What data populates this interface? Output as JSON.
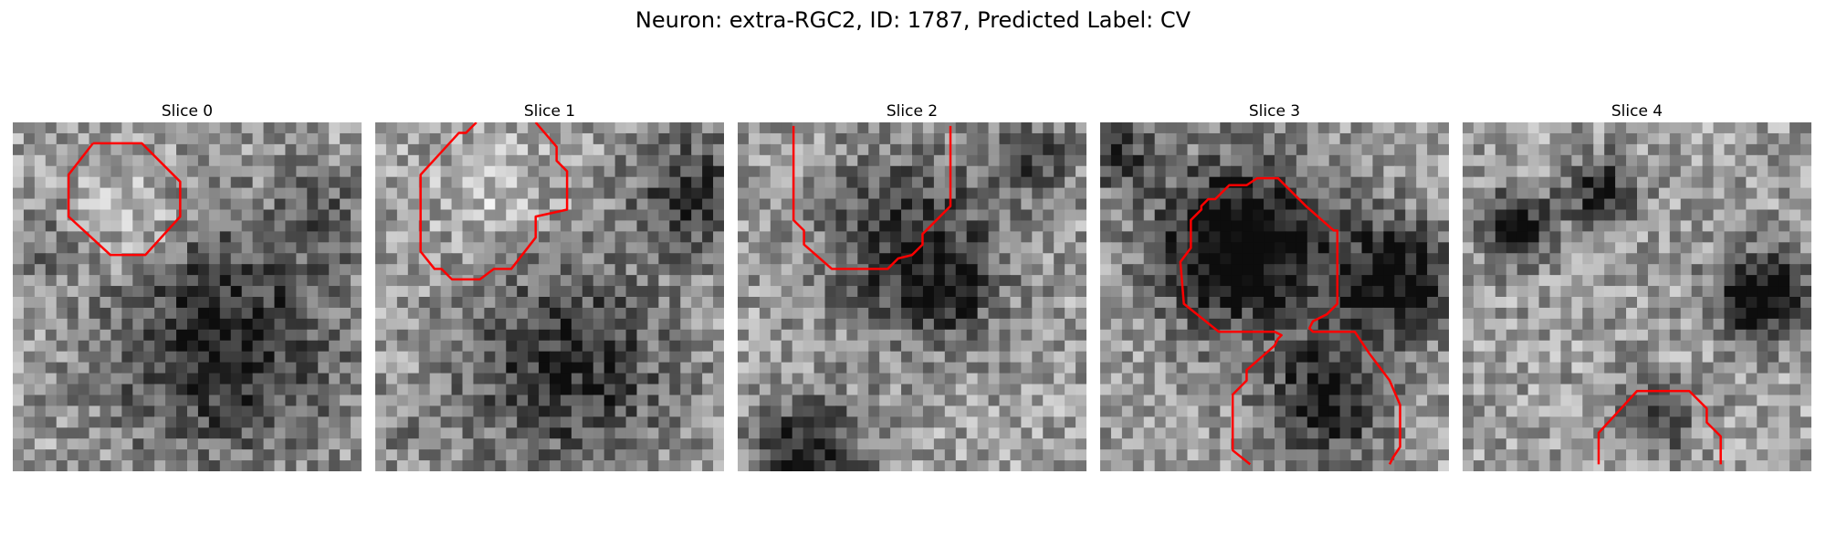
{
  "title": "Neuron: extra-RGC2, ID: 1787, Predicted Label: CV",
  "contour_color": "#ff0000",
  "panels": [
    {
      "label": "Slice 0",
      "seed": 11,
      "blobs": [
        [
          0.6,
          0.62,
          0.4,
          0.5
        ],
        [
          0.35,
          0.3,
          0.18,
          -0.2
        ],
        [
          0.1,
          0.35,
          0.12,
          0.15
        ],
        [
          0.9,
          0.25,
          0.15,
          0.2
        ]
      ],
      "contour": [
        [
          0.23,
          0.06
        ],
        [
          0.37,
          0.06
        ],
        [
          0.48,
          0.17
        ],
        [
          0.48,
          0.27
        ],
        [
          0.38,
          0.38
        ],
        [
          0.28,
          0.38
        ],
        [
          0.16,
          0.27
        ],
        [
          0.16,
          0.15
        ],
        [
          0.23,
          0.06
        ]
      ]
    },
    {
      "label": "Slice 1",
      "seed": 23,
      "blobs": [
        [
          0.55,
          0.7,
          0.35,
          0.45
        ],
        [
          0.35,
          0.22,
          0.18,
          -0.15
        ],
        [
          0.9,
          0.2,
          0.2,
          0.4
        ],
        [
          0.1,
          0.9,
          0.15,
          0.1
        ]
      ],
      "contour": [
        [
          0.29,
          0.0
        ],
        [
          0.26,
          0.03
        ],
        [
          0.24,
          0.03
        ],
        [
          0.13,
          0.15
        ],
        [
          0.13,
          0.37
        ],
        [
          0.17,
          0.42
        ],
        [
          0.19,
          0.42
        ],
        [
          0.22,
          0.45
        ],
        [
          0.3,
          0.45
        ],
        [
          0.34,
          0.42
        ],
        [
          0.39,
          0.42
        ],
        [
          0.46,
          0.33
        ],
        [
          0.46,
          0.27
        ],
        [
          0.55,
          0.25
        ],
        [
          0.55,
          0.14
        ],
        [
          0.52,
          0.11
        ],
        [
          0.52,
          0.07
        ],
        [
          0.46,
          0.0
        ]
      ]
    },
    {
      "label": "Slice 2",
      "seed": 37,
      "blobs": [
        [
          0.5,
          0.35,
          0.3,
          0.45
        ],
        [
          0.2,
          0.95,
          0.18,
          0.55
        ],
        [
          0.6,
          0.5,
          0.15,
          0.25
        ],
        [
          0.85,
          0.1,
          0.15,
          0.3
        ]
      ],
      "contour": [
        [
          0.16,
          0.01
        ],
        [
          0.16,
          0.28
        ],
        [
          0.19,
          0.31
        ],
        [
          0.19,
          0.35
        ],
        [
          0.27,
          0.42
        ],
        [
          0.43,
          0.42
        ],
        [
          0.46,
          0.39
        ],
        [
          0.5,
          0.38
        ],
        [
          0.53,
          0.35
        ],
        [
          0.53,
          0.32
        ],
        [
          0.55,
          0.3
        ],
        [
          0.61,
          0.24
        ],
        [
          0.61,
          0.01
        ]
      ]
    },
    {
      "label": "Slice 3",
      "seed": 53,
      "blobs": [
        [
          0.4,
          0.35,
          0.28,
          0.75
        ],
        [
          0.85,
          0.45,
          0.2,
          0.65
        ],
        [
          0.65,
          0.8,
          0.2,
          0.55
        ],
        [
          0.05,
          0.1,
          0.12,
          0.4
        ]
      ],
      "contour": [
        [
          0.43,
          0.98
        ],
        [
          0.38,
          0.94
        ],
        [
          0.38,
          0.78
        ],
        [
          0.42,
          0.74
        ],
        [
          0.42,
          0.71
        ],
        [
          0.5,
          0.64
        ],
        [
          0.51,
          0.62
        ],
        [
          0.51,
          0.62
        ],
        [
          0.52,
          0.61
        ],
        [
          0.5,
          0.6
        ],
        [
          0.34,
          0.6
        ],
        [
          0.24,
          0.52
        ],
        [
          0.23,
          0.4
        ],
        [
          0.26,
          0.36
        ],
        [
          0.26,
          0.28
        ],
        [
          0.29,
          0.25
        ],
        [
          0.29,
          0.24
        ],
        [
          0.31,
          0.22
        ],
        [
          0.33,
          0.22
        ],
        [
          0.34,
          0.21
        ],
        [
          0.37,
          0.18
        ],
        [
          0.42,
          0.18
        ],
        [
          0.45,
          0.16
        ],
        [
          0.51,
          0.16
        ],
        [
          0.59,
          0.24
        ],
        [
          0.67,
          0.31
        ],
        [
          0.68,
          0.31
        ],
        [
          0.68,
          0.52
        ],
        [
          0.65,
          0.55
        ],
        [
          0.61,
          0.57
        ],
        [
          0.6,
          0.59
        ],
        [
          0.61,
          0.6
        ],
        [
          0.73,
          0.6
        ],
        [
          0.77,
          0.66
        ],
        [
          0.8,
          0.7
        ],
        [
          0.83,
          0.74
        ],
        [
          0.86,
          0.81
        ],
        [
          0.86,
          0.93
        ],
        [
          0.84,
          0.96
        ],
        [
          0.83,
          0.98
        ]
      ]
    },
    {
      "label": "Slice 4",
      "seed": 71,
      "blobs": [
        [
          0.15,
          0.3,
          0.12,
          0.6
        ],
        [
          0.4,
          0.2,
          0.12,
          0.5
        ],
        [
          0.85,
          0.5,
          0.15,
          0.7
        ],
        [
          0.55,
          0.85,
          0.12,
          0.4
        ]
      ],
      "contour": [
        [
          0.39,
          0.98
        ],
        [
          0.39,
          0.89
        ],
        [
          0.5,
          0.77
        ],
        [
          0.65,
          0.77
        ],
        [
          0.7,
          0.82
        ],
        [
          0.7,
          0.86
        ],
        [
          0.74,
          0.9
        ],
        [
          0.74,
          0.98
        ]
      ]
    }
  ]
}
